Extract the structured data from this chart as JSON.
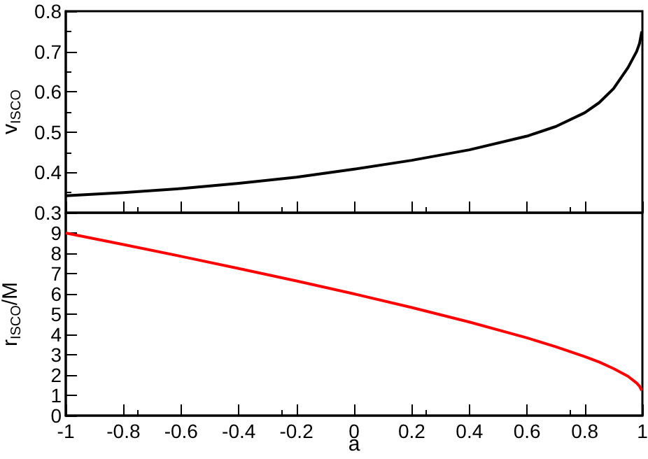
{
  "chart_data": [
    {
      "type": "line",
      "ylabel": "v$_{ISCO}$",
      "x": [
        -1,
        -0.8,
        -0.6,
        -0.4,
        -0.2,
        0,
        0.2,
        0.4,
        0.6,
        0.7,
        0.8,
        0.85,
        0.9,
        0.95,
        0.98,
        0.99,
        0.998
      ],
      "series": [
        {
          "color": "#000000",
          "values": [
            0.342,
            0.35,
            0.36,
            0.373,
            0.388,
            0.408,
            0.43,
            0.456,
            0.49,
            0.514,
            0.548,
            0.573,
            0.608,
            0.66,
            0.7,
            0.72,
            0.75
          ]
        }
      ],
      "xlim": [
        -1,
        1
      ],
      "xticks": [
        -1,
        -0.8,
        -0.6,
        -0.4,
        -0.2,
        0,
        0.2,
        0.4,
        0.6,
        0.8,
        1
      ],
      "ylim": [
        0.3,
        0.8
      ],
      "yticks": [
        0.3,
        0.4,
        0.5,
        0.6,
        0.7,
        0.8
      ],
      "tick_labels": "y"
    },
    {
      "type": "line",
      "xlabel": "a",
      "ylabel": "r$_{ISCO}$/M",
      "x": [
        -1,
        -0.8,
        -0.6,
        -0.4,
        -0.2,
        0,
        0.2,
        0.4,
        0.6,
        0.7,
        0.8,
        0.85,
        0.9,
        0.95,
        0.98,
        0.99,
        0.998
      ],
      "series": [
        {
          "color": "#ff0000",
          "values": [
            9,
            8.43,
            7.85,
            7.25,
            6.64,
            6,
            5.33,
            4.61,
            3.83,
            3.39,
            2.91,
            2.64,
            2.32,
            1.94,
            1.61,
            1.45,
            1.24
          ]
        }
      ],
      "xlim": [
        -1,
        1
      ],
      "xticks": [
        -1,
        -0.8,
        -0.6,
        -0.4,
        -0.2,
        0,
        0.2,
        0.4,
        0.6,
        0.8,
        1
      ],
      "ylim": [
        0,
        10
      ],
      "yticks": [
        0,
        1,
        2,
        3,
        4,
        5,
        6,
        7,
        8,
        9,
        {
          "value": 10,
          "label": null
        }
      ]
    }
  ]
}
